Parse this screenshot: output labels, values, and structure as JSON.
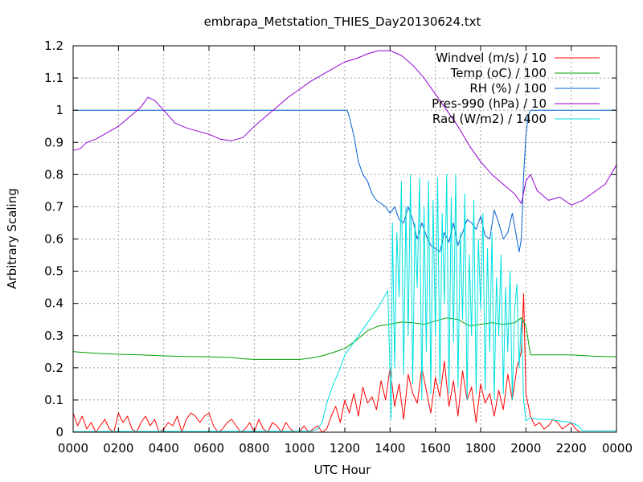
{
  "chart_data": {
    "type": "line",
    "title": "embrapa_Metstation_THIES_Day20130624.txt",
    "xlabel": "UTC Hour",
    "ylabel": "Arbitrary Scaling",
    "xlim": [
      0,
      24
    ],
    "ylim": [
      0,
      1.2
    ],
    "grid": true,
    "legend_position": "top-right",
    "x_ticks": [
      {
        "value": 0,
        "label": "0000"
      },
      {
        "value": 2,
        "label": "0200"
      },
      {
        "value": 4,
        "label": "0400"
      },
      {
        "value": 6,
        "label": "0600"
      },
      {
        "value": 8,
        "label": "0800"
      },
      {
        "value": 10,
        "label": "1000"
      },
      {
        "value": 12,
        "label": "1200"
      },
      {
        "value": 14,
        "label": "1400"
      },
      {
        "value": 16,
        "label": "1600"
      },
      {
        "value": 18,
        "label": "1800"
      },
      {
        "value": 20,
        "label": "2000"
      },
      {
        "value": 22,
        "label": "2200"
      },
      {
        "value": 24,
        "label": "0000"
      }
    ],
    "y_ticks": [
      {
        "value": 0,
        "label": "0"
      },
      {
        "value": 0.1,
        "label": "0.1"
      },
      {
        "value": 0.2,
        "label": "0.2"
      },
      {
        "value": 0.3,
        "label": "0.3"
      },
      {
        "value": 0.4,
        "label": "0.4"
      },
      {
        "value": 0.5,
        "label": "0.5"
      },
      {
        "value": 0.6,
        "label": "0.6"
      },
      {
        "value": 0.7,
        "label": "0.7"
      },
      {
        "value": 0.8,
        "label": "0.8"
      },
      {
        "value": 0.9,
        "label": "0.9"
      },
      {
        "value": 1,
        "label": "1"
      },
      {
        "value": 1.1,
        "label": "1.1"
      },
      {
        "value": 1.2,
        "label": "1.2"
      }
    ],
    "series": [
      {
        "name": "Windvel (m/s) / 10",
        "color": "#ff0000",
        "x": [
          0,
          0.2,
          0.4,
          0.6,
          0.8,
          1.0,
          1.2,
          1.4,
          1.6,
          1.8,
          2.0,
          2.2,
          2.4,
          2.6,
          2.8,
          3.0,
          3.2,
          3.4,
          3.6,
          3.8,
          4.0,
          4.2,
          4.4,
          4.6,
          4.8,
          5.0,
          5.2,
          5.4,
          5.6,
          5.8,
          6.0,
          6.2,
          6.4,
          6.6,
          6.8,
          7.0,
          7.2,
          7.4,
          7.6,
          7.8,
          8.0,
          8.2,
          8.4,
          8.6,
          8.8,
          9.0,
          9.2,
          9.4,
          9.6,
          9.8,
          10.0,
          10.2,
          10.4,
          10.6,
          10.8,
          11.0,
          11.2,
          11.4,
          11.6,
          11.8,
          12.0,
          12.2,
          12.4,
          12.6,
          12.8,
          13.0,
          13.2,
          13.4,
          13.6,
          13.8,
          14.0,
          14.2,
          14.4,
          14.6,
          14.8,
          15.0,
          15.2,
          15.4,
          15.6,
          15.8,
          16.0,
          16.2,
          16.4,
          16.6,
          16.8,
          17.0,
          17.2,
          17.4,
          17.6,
          17.8,
          18.0,
          18.2,
          18.4,
          18.6,
          18.8,
          19.0,
          19.2,
          19.4,
          19.6,
          19.8,
          19.9,
          20.0,
          20.2,
          20.4,
          20.6,
          20.8,
          21.0,
          21.2,
          21.4,
          21.6,
          21.8,
          22.0,
          22.2,
          22.4,
          22.6,
          22.8,
          23.0,
          23.2,
          23.4,
          23.6,
          23.8,
          24.0
        ],
        "y": [
          0.06,
          0.02,
          0.05,
          0.01,
          0.03,
          0.0,
          0.02,
          0.04,
          0.01,
          0.0,
          0.06,
          0.03,
          0.05,
          0.01,
          0.0,
          0.03,
          0.05,
          0.02,
          0.04,
          0.0,
          0.01,
          0.03,
          0.02,
          0.05,
          0.0,
          0.04,
          0.06,
          0.05,
          0.03,
          0.05,
          0.06,
          0.02,
          0.0,
          0.01,
          0.03,
          0.04,
          0.02,
          0.0,
          0.01,
          0.03,
          0.0,
          0.04,
          0.01,
          0.0,
          0.03,
          0.02,
          0.0,
          0.03,
          0.01,
          0.0,
          0.0,
          0.02,
          0.0,
          0.01,
          0.02,
          0.0,
          0.01,
          0.05,
          0.08,
          0.03,
          0.1,
          0.06,
          0.12,
          0.05,
          0.14,
          0.09,
          0.11,
          0.07,
          0.16,
          0.1,
          0.2,
          0.08,
          0.15,
          0.04,
          0.18,
          0.12,
          0.09,
          0.2,
          0.13,
          0.06,
          0.17,
          0.11,
          0.22,
          0.08,
          0.16,
          0.05,
          0.19,
          0.1,
          0.14,
          0.03,
          0.15,
          0.09,
          0.12,
          0.05,
          0.13,
          0.07,
          0.18,
          0.1,
          0.2,
          0.25,
          0.43,
          0.12,
          0.05,
          0.02,
          0.03,
          0.01,
          0.02,
          0.04,
          0.03,
          0.01,
          0.02,
          0.03,
          0.01,
          0.0,
          0.0,
          0.0,
          0.0,
          0.0,
          0.0,
          0.0,
          0.0,
          0.0
        ]
      },
      {
        "name": "Temp (oC) / 100",
        "color": "#00a000",
        "x": [
          0,
          1,
          2,
          3,
          4,
          5,
          6,
          7,
          7.5,
          8,
          9,
          10,
          10.5,
          11,
          11.5,
          12,
          12.5,
          13,
          13.5,
          14,
          14.5,
          15,
          15.5,
          16,
          16.5,
          17,
          17.5,
          18,
          18.5,
          19,
          19.5,
          19.8,
          20,
          20.2,
          21,
          22,
          23,
          24
        ],
        "y": [
          0.25,
          0.245,
          0.242,
          0.24,
          0.237,
          0.235,
          0.234,
          0.232,
          0.228,
          0.226,
          0.226,
          0.226,
          0.23,
          0.237,
          0.248,
          0.26,
          0.285,
          0.315,
          0.33,
          0.335,
          0.342,
          0.34,
          0.335,
          0.345,
          0.355,
          0.35,
          0.33,
          0.335,
          0.34,
          0.335,
          0.34,
          0.355,
          0.33,
          0.24,
          0.24,
          0.24,
          0.236,
          0.234
        ]
      },
      {
        "name": "RH (%) / 100",
        "color": "#0060d0",
        "x": [
          0,
          12.1,
          12.2,
          12.4,
          12.6,
          12.8,
          13.0,
          13.2,
          13.4,
          13.6,
          13.8,
          14.0,
          14.2,
          14.4,
          14.6,
          14.8,
          15.0,
          15.2,
          15.4,
          15.6,
          15.8,
          16.0,
          16.2,
          16.4,
          16.6,
          16.8,
          17.0,
          17.2,
          17.4,
          17.6,
          17.8,
          18.0,
          18.2,
          18.4,
          18.6,
          18.8,
          19.0,
          19.2,
          19.4,
          19.6,
          19.7,
          19.8,
          19.9,
          20.0,
          20.1,
          20.2,
          20.4,
          24.0
        ],
        "y": [
          1.0,
          1.0,
          0.98,
          0.92,
          0.84,
          0.8,
          0.78,
          0.74,
          0.72,
          0.71,
          0.7,
          0.68,
          0.7,
          0.66,
          0.65,
          0.7,
          0.66,
          0.6,
          0.65,
          0.61,
          0.58,
          0.57,
          0.56,
          0.62,
          0.59,
          0.65,
          0.58,
          0.62,
          0.66,
          0.65,
          0.63,
          0.67,
          0.61,
          0.6,
          0.69,
          0.65,
          0.6,
          0.62,
          0.68,
          0.6,
          0.56,
          0.6,
          0.8,
          0.92,
          0.98,
          1.0,
          1.0,
          1.0
        ]
      },
      {
        "name": "Pres-990 (hPa) / 10",
        "color": "#9400d3",
        "x": [
          0,
          0.3,
          0.6,
          1.0,
          1.5,
          2.0,
          2.5,
          3.0,
          3.3,
          3.6,
          4.0,
          4.5,
          5.0,
          5.5,
          6.0,
          6.5,
          7.0,
          7.5,
          8.0,
          8.5,
          9.0,
          9.5,
          10.0,
          10.5,
          11.0,
          11.5,
          12.0,
          12.5,
          13.0,
          13.5,
          14.0,
          14.5,
          15.0,
          15.5,
          16.0,
          16.5,
          17.0,
          17.5,
          18.0,
          18.5,
          19.0,
          19.5,
          19.8,
          20.0,
          20.2,
          20.5,
          21.0,
          21.5,
          22.0,
          22.5,
          23.0,
          23.5,
          24.0
        ],
        "y": [
          0.875,
          0.88,
          0.9,
          0.91,
          0.93,
          0.95,
          0.98,
          1.01,
          1.04,
          1.03,
          1.0,
          0.96,
          0.945,
          0.935,
          0.925,
          0.91,
          0.905,
          0.915,
          0.95,
          0.98,
          1.01,
          1.04,
          1.065,
          1.09,
          1.11,
          1.13,
          1.15,
          1.16,
          1.175,
          1.185,
          1.185,
          1.17,
          1.14,
          1.1,
          1.05,
          1.0,
          0.95,
          0.89,
          0.84,
          0.8,
          0.77,
          0.74,
          0.71,
          0.78,
          0.8,
          0.75,
          0.72,
          0.73,
          0.705,
          0.72,
          0.745,
          0.77,
          0.83
        ]
      },
      {
        "name": "Rad (W/m2) / 1400",
        "color": "#00e0e0",
        "x": [
          0,
          10.5,
          10.8,
          11.0,
          11.2,
          11.5,
          11.8,
          12.0,
          12.5,
          13.0,
          13.5,
          13.9,
          14.05,
          14.1,
          14.2,
          14.3,
          14.4,
          14.5,
          14.6,
          14.7,
          14.8,
          14.9,
          15.0,
          15.1,
          15.2,
          15.3,
          15.4,
          15.5,
          15.6,
          15.7,
          15.8,
          15.9,
          16.0,
          16.1,
          16.2,
          16.3,
          16.4,
          16.5,
          16.6,
          16.7,
          16.8,
          16.9,
          17.0,
          17.1,
          17.2,
          17.3,
          17.4,
          17.5,
          17.6,
          17.7,
          17.8,
          17.9,
          18.0,
          18.1,
          18.2,
          18.3,
          18.4,
          18.5,
          18.6,
          18.7,
          18.8,
          18.9,
          19.0,
          19.1,
          19.2,
          19.3,
          19.4,
          19.5,
          19.6,
          19.7,
          19.8,
          19.9,
          20.0,
          20.2,
          20.5,
          21.0,
          21.5,
          22.0,
          22.3,
          22.5,
          24.0
        ],
        "y": [
          0.002,
          0.003,
          0.01,
          0.03,
          0.09,
          0.15,
          0.2,
          0.24,
          0.29,
          0.34,
          0.39,
          0.44,
          0.04,
          0.65,
          0.2,
          0.62,
          0.42,
          0.78,
          0.18,
          0.7,
          0.3,
          0.8,
          0.15,
          0.65,
          0.45,
          0.79,
          0.1,
          0.7,
          0.25,
          0.78,
          0.12,
          0.72,
          0.3,
          0.79,
          0.15,
          0.68,
          0.4,
          0.8,
          0.12,
          0.73,
          0.28,
          0.8,
          0.14,
          0.62,
          0.35,
          0.74,
          0.1,
          0.55,
          0.3,
          0.72,
          0.12,
          0.6,
          0.38,
          0.68,
          0.13,
          0.57,
          0.25,
          0.62,
          0.1,
          0.48,
          0.3,
          0.55,
          0.12,
          0.45,
          0.25,
          0.5,
          0.1,
          0.38,
          0.46,
          0.2,
          0.35,
          0.1,
          0.035,
          0.045,
          0.04,
          0.04,
          0.035,
          0.03,
          0.02,
          0.004,
          0.004
        ]
      }
    ]
  }
}
